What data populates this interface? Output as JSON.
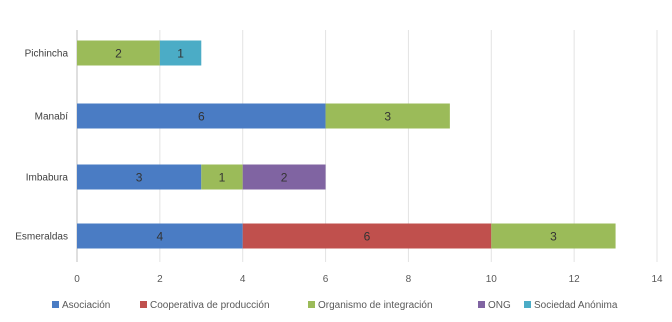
{
  "chart_data": {
    "type": "bar",
    "orientation": "horizontal",
    "stacked": true,
    "title": "",
    "xlabel": "",
    "ylabel": "",
    "xlim": [
      0,
      14
    ],
    "x_ticks": [
      0,
      2,
      4,
      6,
      8,
      10,
      12,
      14
    ],
    "grid": true,
    "legend_position": "bottom",
    "categories": [
      "Pichincha",
      "Manabí",
      "Imbabura",
      "Esmeraldas"
    ],
    "series": [
      {
        "name": "Asociación",
        "color": "#4a7cc4",
        "values": [
          0,
          6,
          3,
          4
        ]
      },
      {
        "name": "Cooperativa de producción",
        "color": "#c0504d",
        "values": [
          0,
          0,
          0,
          6
        ]
      },
      {
        "name": "Organismo de integración",
        "color": "#9bbb59",
        "values": [
          2,
          3,
          1,
          3
        ]
      },
      {
        "name": "ONG",
        "color": "#8064a2",
        "values": [
          0,
          0,
          2,
          0
        ]
      },
      {
        "name": "Sociedad Anónima",
        "color": "#4bacc6",
        "values": [
          1,
          0,
          0,
          0
        ]
      }
    ]
  }
}
